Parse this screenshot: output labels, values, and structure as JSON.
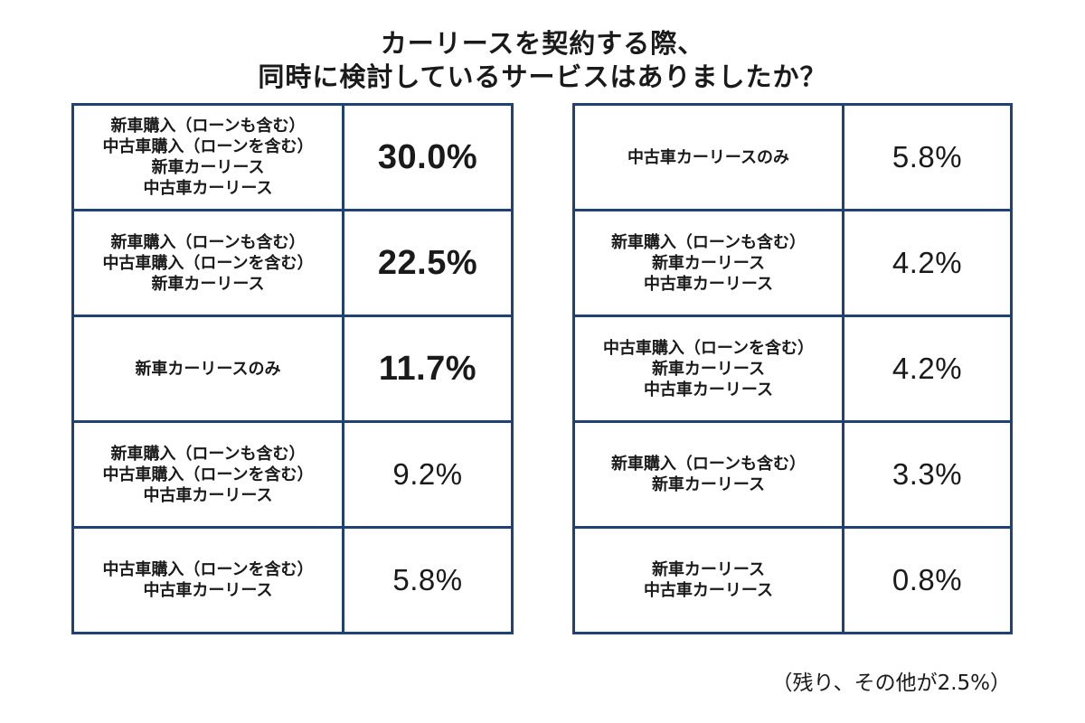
{
  "title": {
    "line1": "カーリースを契約する際、",
    "line2": "同時に検討しているサービスはありましたか？"
  },
  "chart_data": {
    "type": "table",
    "title": "カーリースを契約する際、同時に検討しているサービスはありましたか？",
    "unit": "%",
    "rows": [
      {
        "items": [
          "新車購入（ローンも含む）",
          "中古車購入（ローンを含む）",
          "新車カーリース",
          "中古車カーリース"
        ],
        "value": 30.0,
        "display": "30.0%"
      },
      {
        "items": [
          "新車購入（ローンも含む）",
          "中古車購入（ローンを含む）",
          "新車カーリース"
        ],
        "value": 22.5,
        "display": "22.5%"
      },
      {
        "items": [
          "新車カーリースのみ"
        ],
        "value": 11.7,
        "display": "11.7%"
      },
      {
        "items": [
          "新車購入（ローンも含む）",
          "中古車購入（ローンを含む）",
          "中古車カーリース"
        ],
        "value": 9.2,
        "display": "9.2%"
      },
      {
        "items": [
          "中古車購入（ローンを含む）",
          "中古車カーリース"
        ],
        "value": 5.8,
        "display": "5.8%"
      },
      {
        "items": [
          "中古車カーリースのみ"
        ],
        "value": 5.8,
        "display": "5.8%"
      },
      {
        "items": [
          "新車購入（ローンも含む）",
          "新車カーリース",
          "中古車カーリース"
        ],
        "value": 4.2,
        "display": "4.2%"
      },
      {
        "items": [
          "中古車購入（ローンを含む）",
          "新車カーリース",
          "中古車カーリース"
        ],
        "value": 4.2,
        "display": "4.2%"
      },
      {
        "items": [
          "新車購入（ローンも含む）",
          "新車カーリース"
        ],
        "value": 3.3,
        "display": "3.3%"
      },
      {
        "items": [
          "新車カーリース",
          "中古車カーリース"
        ],
        "value": 0.8,
        "display": "0.8%"
      }
    ],
    "other": {
      "value": 2.5
    }
  },
  "footnote": "（残り、その他が2.5%）",
  "colors": {
    "border": "#1f4272",
    "text": "#1a1a1a",
    "background": "#ffffff"
  }
}
